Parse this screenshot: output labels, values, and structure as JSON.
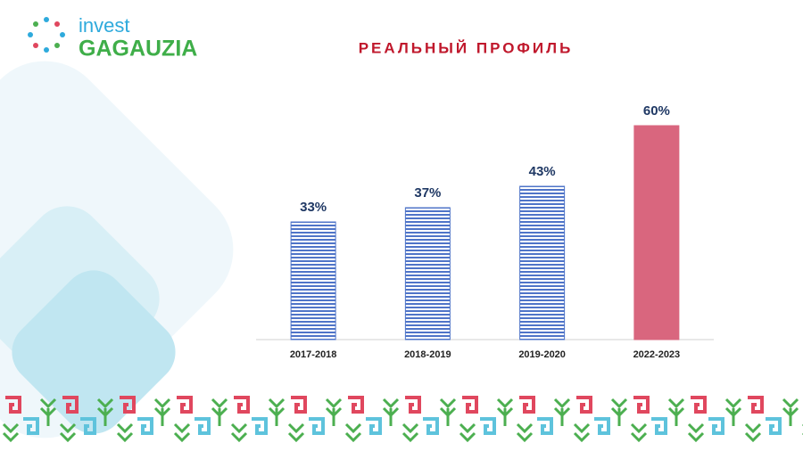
{
  "logo": {
    "top": "invest",
    "bottom": "GAGAUZIA"
  },
  "chart_data": {
    "type": "bar",
    "title": "РЕАЛЬНЫЙ ПРОФИЛЬ",
    "categories": [
      "2017-2018",
      "2018-2019",
      "2019-2020",
      "2022-2023"
    ],
    "values": [
      33,
      37,
      43,
      60
    ],
    "value_labels": [
      "33%",
      "37%",
      "43%",
      "60%"
    ],
    "colors": [
      "#4f74c8",
      "#4f74c8",
      "#4f74c8",
      "#d9667e"
    ],
    "bar_styles": [
      "striped",
      "striped",
      "striped",
      "solid"
    ],
    "ylim": [
      0,
      60
    ]
  }
}
